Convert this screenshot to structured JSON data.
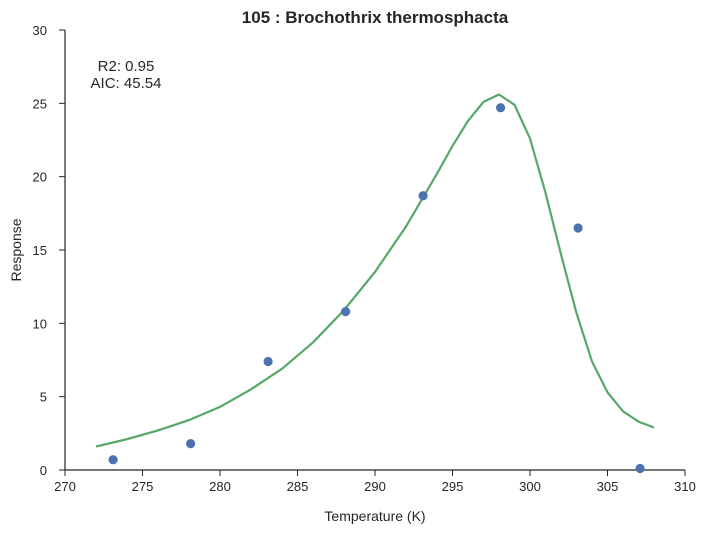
{
  "chart_data": {
    "type": "scatter",
    "title": "105 : Brochothrix thermosphacta",
    "xlabel": "Temperature (K)",
    "ylabel": "Response",
    "xlim": [
      270,
      310
    ],
    "ylim": [
      0,
      30
    ],
    "xticks": [
      270,
      275,
      280,
      285,
      290,
      295,
      300,
      305,
      310
    ],
    "yticks": [
      0,
      5,
      10,
      15,
      20,
      25,
      30
    ],
    "grid": false,
    "annotations": [
      "R2: 0.95",
      "AIC: 45.54"
    ],
    "series": [
      {
        "kind": "points",
        "color": "#4c72b0",
        "x": [
          273.1,
          278.1,
          283.1,
          288.1,
          293.1,
          298.1,
          303.1,
          307.1
        ],
        "y": [
          0.7,
          1.8,
          7.4,
          10.8,
          18.7,
          24.7,
          16.5,
          0.1
        ]
      },
      {
        "kind": "fit-line",
        "color": "#55a868",
        "x": [
          272.0,
          274.0,
          276.0,
          278.0,
          280.0,
          282.0,
          284.0,
          286.0,
          288.0,
          290.0,
          292.0,
          294.0,
          295.0,
          296.0,
          297.0,
          298.0,
          299.0,
          300.0,
          301.0,
          302.0,
          303.0,
          304.0,
          305.0,
          306.0,
          307.0,
          308.0
        ],
        "y": [
          1.6,
          2.1,
          2.7,
          3.4,
          4.3,
          5.5,
          6.9,
          8.7,
          10.9,
          13.5,
          16.6,
          20.2,
          22.1,
          23.8,
          25.1,
          25.6,
          24.9,
          22.6,
          18.9,
          14.7,
          10.7,
          7.4,
          5.3,
          4.0,
          3.3,
          2.9
        ]
      }
    ]
  }
}
